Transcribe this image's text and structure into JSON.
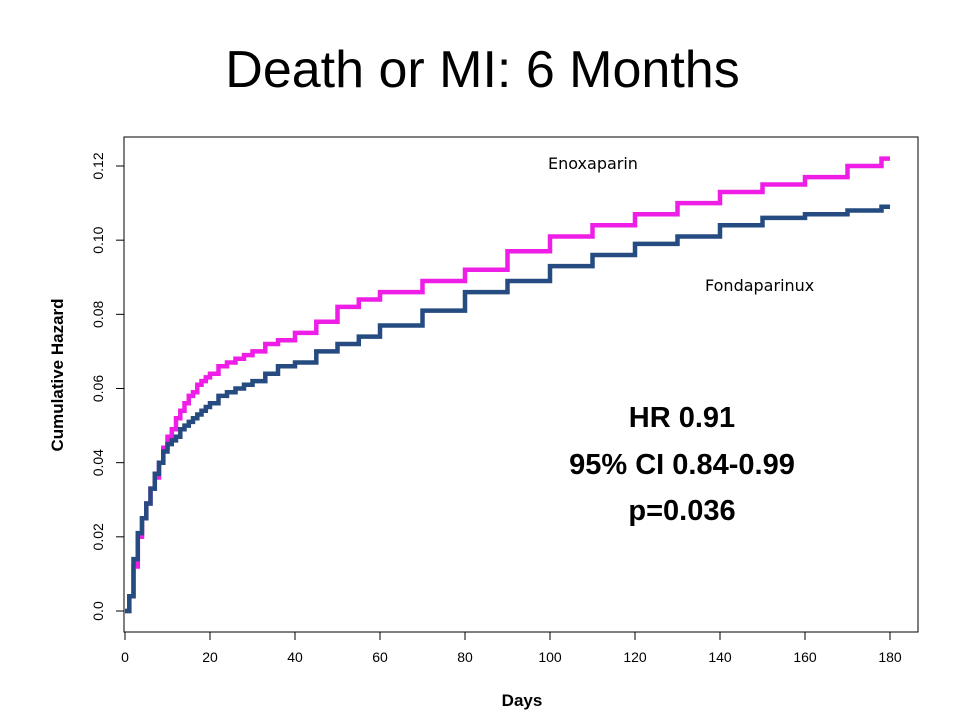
{
  "title": "Death or MI: 6 Months",
  "chart_data": {
    "type": "line",
    "title": "Death or MI: 6 Months",
    "xlabel": "Days",
    "ylabel": "Cumulative Hazard",
    "xlim": [
      0,
      180
    ],
    "ylim": [
      0,
      0.12
    ],
    "x_ticks": [
      "0",
      "20",
      "40",
      "60",
      "80",
      "100",
      "120",
      "140",
      "160",
      "180"
    ],
    "y_ticks": [
      "0.0",
      "0.02",
      "0.04",
      "0.06",
      "0.08",
      "0.10",
      "0.12"
    ],
    "series": [
      {
        "name": "Enoxaparin",
        "color": "#ee1ee6",
        "x": [
          0,
          1,
          2,
          3,
          4,
          5,
          6,
          7,
          8,
          9,
          10,
          11,
          12,
          13,
          14,
          15,
          16,
          17,
          18,
          19,
          20,
          22,
          24,
          26,
          28,
          30,
          33,
          36,
          40,
          45,
          50,
          55,
          60,
          70,
          80,
          90,
          100,
          110,
          120,
          130,
          140,
          150,
          160,
          170,
          178,
          180
        ],
        "y": [
          0,
          0.004,
          0.012,
          0.02,
          0.025,
          0.029,
          0.033,
          0.036,
          0.04,
          0.044,
          0.047,
          0.049,
          0.052,
          0.054,
          0.056,
          0.058,
          0.059,
          0.061,
          0.062,
          0.063,
          0.064,
          0.066,
          0.067,
          0.068,
          0.069,
          0.07,
          0.072,
          0.073,
          0.075,
          0.078,
          0.082,
          0.084,
          0.086,
          0.089,
          0.092,
          0.097,
          0.101,
          0.104,
          0.107,
          0.11,
          0.113,
          0.115,
          0.117,
          0.12,
          0.122,
          0.122
        ]
      },
      {
        "name": "Fondaparinux",
        "color": "#254b80",
        "x": [
          0,
          1,
          2,
          3,
          4,
          5,
          6,
          7,
          8,
          9,
          10,
          11,
          12,
          13,
          14,
          15,
          16,
          17,
          18,
          19,
          20,
          22,
          24,
          26,
          28,
          30,
          33,
          36,
          40,
          45,
          50,
          55,
          60,
          70,
          80,
          90,
          100,
          110,
          120,
          130,
          140,
          150,
          160,
          170,
          178,
          180
        ],
        "y": [
          0,
          0.004,
          0.014,
          0.021,
          0.025,
          0.029,
          0.033,
          0.037,
          0.04,
          0.043,
          0.045,
          0.046,
          0.047,
          0.049,
          0.05,
          0.051,
          0.052,
          0.053,
          0.054,
          0.055,
          0.056,
          0.058,
          0.059,
          0.06,
          0.061,
          0.062,
          0.064,
          0.066,
          0.067,
          0.07,
          0.072,
          0.074,
          0.077,
          0.081,
          0.086,
          0.089,
          0.093,
          0.096,
          0.099,
          0.101,
          0.104,
          0.106,
          0.107,
          0.108,
          0.109,
          0.109
        ]
      }
    ],
    "annotations": [
      "HR 0.91",
      "95% CI 0.84-0.99",
      "p=0.036"
    ]
  }
}
